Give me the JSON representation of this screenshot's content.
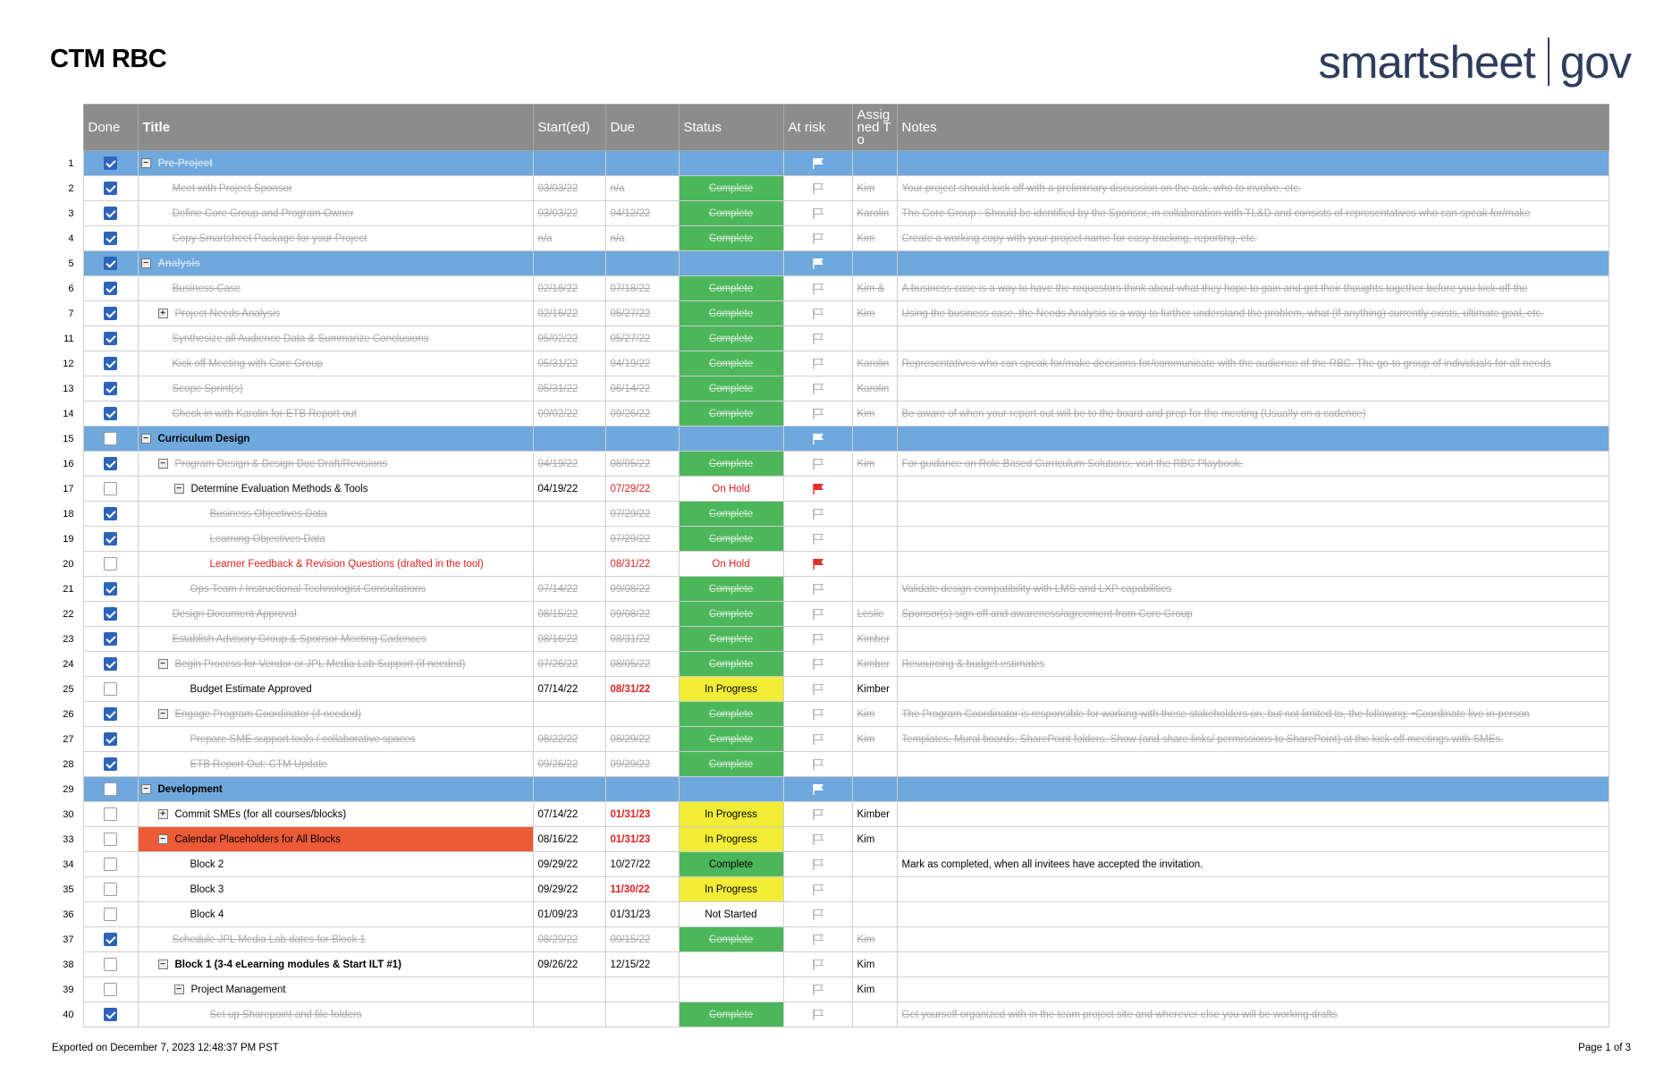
{
  "header": {
    "title": "CTM RBC",
    "logo_left": "smartsheet",
    "logo_right": "gov"
  },
  "columns": [
    "Done",
    "Title",
    "Start(ed)",
    "Due",
    "Status",
    "At risk",
    "Assig ned To",
    "Notes"
  ],
  "rows": [
    {
      "num": "1",
      "done": true,
      "type": "sec",
      "toggle": "−",
      "title": "Pre-Project",
      "start": "",
      "due": "",
      "status": "",
      "flag": "white",
      "assigned": "",
      "notes": "",
      "strike": true
    },
    {
      "num": "2",
      "done": true,
      "indent": 1,
      "title": "Meet with Project Sponsor",
      "start": "03/03/22",
      "due": "n/a",
      "status": "Complete",
      "flag": "outline",
      "assigned": "Kim",
      "notes": "Your project should kick off with a preliminary discussion on the ask, who to involve, etc."
    },
    {
      "num": "3",
      "done": true,
      "indent": 1,
      "title": "Define Core Group and Program Owner",
      "start": "03/03/22",
      "due": "04/12/22",
      "status": "Complete",
      "flag": "outline",
      "assigned": "Karolin",
      "notes": "The Core Group : Should be identified by the Sponsor, in collaboration with TL&D and consists of representatives who can speak for/make"
    },
    {
      "num": "4",
      "done": true,
      "indent": 1,
      "title": "Copy Smartsheet Package for your Project",
      "start": "n/a",
      "due": "n/a",
      "status": "Complete",
      "flag": "outline",
      "assigned": "Kim",
      "notes": "Create a working copy with your project name for easy tracking, reporting, etc."
    },
    {
      "num": "5",
      "done": true,
      "type": "sec",
      "toggle": "−",
      "title": "Analysis",
      "start": "",
      "due": "",
      "status": "",
      "flag": "white",
      "assigned": "",
      "notes": "",
      "strike": true
    },
    {
      "num": "6",
      "done": true,
      "indent": 1,
      "title": "Business Case",
      "start": "02/16/22",
      "due": "07/18/22",
      "status": "Complete",
      "flag": "outline",
      "assigned": "Kim &",
      "notes": "A business case is a way to have the requestors think about what they hope to gain and get their thoughts together before you kick-off the"
    },
    {
      "num": "7",
      "done": true,
      "indent": 1,
      "toggle": "+",
      "title": "Project Needs Analysis",
      "start": "02/16/22",
      "due": "05/27/22",
      "status": "Complete",
      "flag": "outline",
      "assigned": "Kim",
      "notes": "Using the business case, the Needs Analysis is a way to further understand the problem, what (if anything) currently exists, ultimate goal, etc."
    },
    {
      "num": "11",
      "done": true,
      "indent": 1,
      "title": "Synthesize all Audience Data & Summarize Conclusions",
      "start": "05/02/22",
      "due": "05/27/22",
      "status": "Complete",
      "flag": "outline",
      "assigned": "",
      "notes": ""
    },
    {
      "num": "12",
      "done": true,
      "indent": 1,
      "title": "Kick off Meeting with Core Group",
      "start": "05/31/22",
      "due": "04/19/22",
      "status": "Complete",
      "flag": "outline",
      "assigned": "Karolin",
      "notes": "Representatives who can speak for/make decisions for/communicate with the audience of the RBC. The go-to group of individuals for all needs"
    },
    {
      "num": "13",
      "done": true,
      "indent": 1,
      "title": "Scope Sprint(s)",
      "start": "05/31/22",
      "due": "06/14/22",
      "status": "Complete",
      "flag": "outline",
      "assigned": "Karolin",
      "notes": ""
    },
    {
      "num": "14",
      "done": true,
      "indent": 1,
      "title": "Check in with Karolin for ETB Report out",
      "start": "09/02/22",
      "due": "09/26/22",
      "status": "Complete",
      "flag": "outline",
      "assigned": "Kim",
      "notes": "Be aware of when your report out will be to the board and prep for the meeting (Usually on a cadence)"
    },
    {
      "num": "15",
      "done": false,
      "type": "sec",
      "toggle": "−",
      "title": "Curriculum Design",
      "start": "",
      "due": "",
      "status": "",
      "flag": "white",
      "assigned": "",
      "notes": "",
      "black": true
    },
    {
      "num": "16",
      "done": true,
      "indent": 1,
      "toggle": "−",
      "title": "Program Design & Design Doc Draft/Revisions",
      "start": "04/19/22",
      "due": "08/05/22",
      "status": "Complete",
      "flag": "outline",
      "assigned": "Kim",
      "notes": "For guidance on Role Based Curriculum Solutions, visit the RBC Playbook."
    },
    {
      "num": "17",
      "done": false,
      "indent": 2,
      "toggle": "−",
      "title": "Determine Evaluation Methods & Tools",
      "start": "04/19/22",
      "due": "07/29/22",
      "status": "On Hold",
      "flag": "red",
      "assigned": "",
      "notes": ""
    },
    {
      "num": "18",
      "done": true,
      "indent": 3,
      "title": "Business Objectives Data",
      "start": "",
      "due": "07/29/22",
      "status": "Complete",
      "flag": "outline",
      "assigned": "",
      "notes": ""
    },
    {
      "num": "19",
      "done": true,
      "indent": 3,
      "title": "Learning Objectives Data",
      "start": "",
      "due": "07/29/22",
      "status": "Complete",
      "flag": "outline",
      "assigned": "",
      "notes": ""
    },
    {
      "num": "20",
      "done": false,
      "indent": 3,
      "title": "Learner Feedback & Revision Questions (drafted in the tool)",
      "start": "",
      "due": "08/31/22",
      "status": "On Hold",
      "flag": "red",
      "assigned": "",
      "notes": "",
      "redtitle": true
    },
    {
      "num": "21",
      "done": true,
      "indent": 2,
      "title": "Ops Team / Instructional Technologist Consultations",
      "start": "07/14/22",
      "due": "09/08/22",
      "status": "Complete",
      "flag": "outline",
      "assigned": "",
      "notes": "Validate design compatibility with LMS and LXP capabilities"
    },
    {
      "num": "22",
      "done": true,
      "indent": 1,
      "title": "Design Document Approval",
      "start": "08/15/22",
      "due": "09/08/22",
      "status": "Complete",
      "flag": "outline",
      "assigned": "Leslie",
      "notes": "Sponsor(s) sign off and awareness/agreement from Core Group"
    },
    {
      "num": "23",
      "done": true,
      "indent": 1,
      "title": "Establish Advisory Group & Sponsor Meeting Cadences",
      "start": "08/16/22",
      "due": "08/31/22",
      "status": "Complete",
      "flag": "outline",
      "assigned": "Kimber",
      "notes": ""
    },
    {
      "num": "24",
      "done": true,
      "indent": 1,
      "toggle": "−",
      "title": "Begin Process for Vendor or JPL Media Lab  Support (if needed)",
      "start": "07/26/22",
      "due": "08/05/22",
      "status": "Complete",
      "flag": "outline",
      "assigned": "Kimber",
      "notes": "Resourcing & budget estimates"
    },
    {
      "num": "25",
      "done": false,
      "indent": 2,
      "title": "Budget Estimate Approved",
      "start": "07/14/22",
      "due": "08/31/22",
      "status": "In Progress",
      "flag": "outline",
      "assigned": "Kimber",
      "notes": "",
      "duered": true
    },
    {
      "num": "26",
      "done": true,
      "indent": 1,
      "toggle": "−",
      "title": "Engage Program Coordinator (if needed)",
      "start": "",
      "due": "",
      "status": "Complete",
      "flag": "outline",
      "assigned": "Kim",
      "notes": "The Program Coordinator is responsible for working with these stakeholders on, but not limited to, the following: •Coordinate live in-person"
    },
    {
      "num": "27",
      "done": true,
      "indent": 2,
      "title": "Prepare SME support tools / collaborative spaces",
      "start": "08/22/22",
      "due": "08/29/22",
      "status": "Complete",
      "flag": "outline",
      "assigned": "Kim",
      "notes": "Templates, Mural boards, SharePoint folders. Show (and share links/ permissions to SharePoint) at the kick-off meetings with SMEs."
    },
    {
      "num": "28",
      "done": true,
      "indent": 2,
      "title": "ETB Report Out: CTM Update",
      "start": "09/26/22",
      "due": "09/29/22",
      "status": "Complete",
      "flag": "outline",
      "assigned": "",
      "notes": ""
    },
    {
      "num": "29",
      "done": false,
      "type": "sec",
      "toggle": "−",
      "title": "Development",
      "start": "",
      "due": "",
      "status": "",
      "flag": "white",
      "assigned": "",
      "notes": "",
      "black": true
    },
    {
      "num": "30",
      "done": false,
      "indent": 1,
      "toggle": "+",
      "title": "Commit SMEs (for all courses/blocks)",
      "start": "07/14/22",
      "due": "01/31/23",
      "status": "In Progress",
      "flag": "outline",
      "assigned": "Kimber",
      "notes": "",
      "duered": true
    },
    {
      "num": "33",
      "done": false,
      "indent": 1,
      "toggle": "−",
      "title": "Calendar Placeholders for All Blocks",
      "start": "08/16/22",
      "due": "01/31/23",
      "status": "In Progress",
      "flag": "outline",
      "assigned": "Kim",
      "notes": "",
      "duered": true,
      "orange": true
    },
    {
      "num": "34",
      "done": false,
      "indent": 2,
      "title": "Block 2",
      "start": "09/29/22",
      "due": "10/27/22",
      "status": "Complete",
      "flag": "outline",
      "assigned": "",
      "notes": "Mark as completed, when all invitees have accepted the invitation.",
      "live": true
    },
    {
      "num": "35",
      "done": false,
      "indent": 2,
      "title": "Block 3",
      "start": "09/29/22",
      "due": "11/30/22",
      "status": "In Progress",
      "flag": "outline",
      "assigned": "",
      "notes": "",
      "duered": true
    },
    {
      "num": "36",
      "done": false,
      "indent": 2,
      "title": "Block 4",
      "start": "01/09/23",
      "due": "01/31/23",
      "status": "Not Started",
      "flag": "outline",
      "assigned": "",
      "notes": ""
    },
    {
      "num": "37",
      "done": true,
      "indent": 1,
      "title": "Schedule JPL Media Lab dates for Block 1",
      "start": "08/29/22",
      "due": "09/15/22",
      "status": "Complete",
      "flag": "outline",
      "assigned": "Kim",
      "notes": ""
    },
    {
      "num": "38",
      "done": false,
      "indent": 1,
      "toggle": "−",
      "title": "Block 1 (3-4 eLearning modules & Start ILT #1)",
      "start": "09/26/22",
      "due": "12/15/22",
      "status": "",
      "flag": "outline",
      "assigned": "Kim",
      "notes": "",
      "boldtitle": true
    },
    {
      "num": "39",
      "done": false,
      "indent": 2,
      "toggle": "−",
      "title": "Project Management",
      "start": "",
      "due": "",
      "status": "",
      "flag": "outline",
      "assigned": "Kim",
      "notes": ""
    },
    {
      "num": "40",
      "done": true,
      "indent": 3,
      "title": "Set up Sharepoint and file folders",
      "start": "",
      "due": "",
      "status": "Complete",
      "flag": "outline",
      "assigned": "",
      "notes": "Get yourself organized with in the team project site and wherever else you will be working drafts"
    }
  ],
  "footer": {
    "exported": "Exported on December 7, 2023 12:48:37 PM PST",
    "page": "Page 1 of 3"
  },
  "colors": {
    "section": "#6fa8dc",
    "complete": "#4cb75a",
    "in_progress": "#f1ec35",
    "highlight": "#ec5a38",
    "checkbox": "#2d64b8",
    "header": "#8c8c8c"
  }
}
